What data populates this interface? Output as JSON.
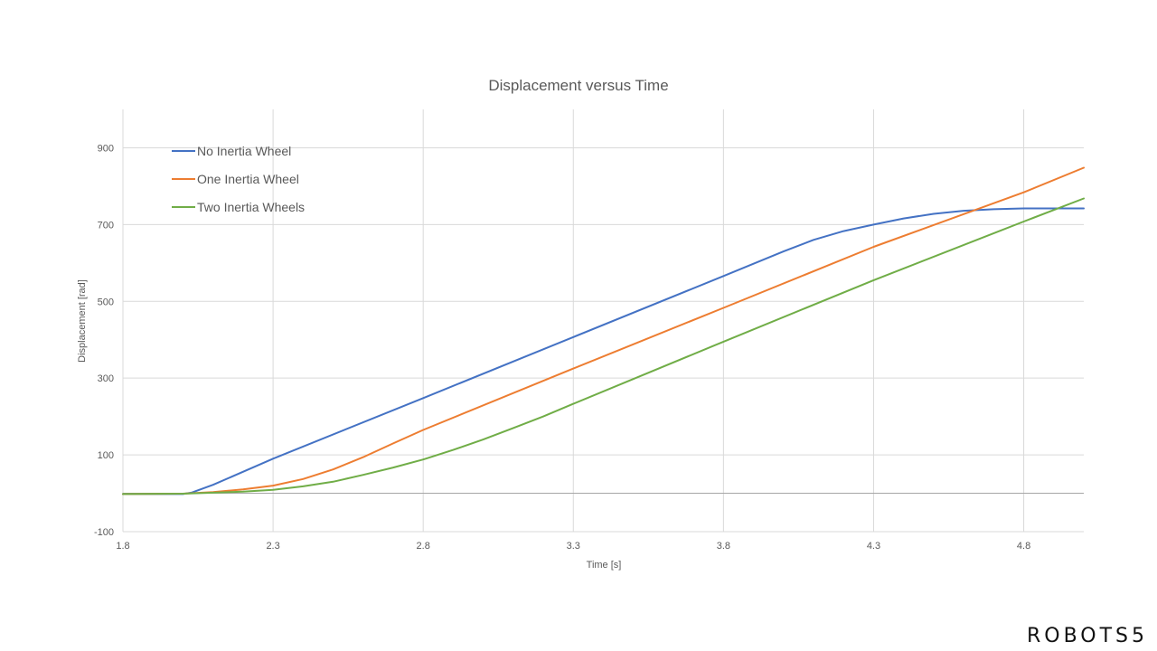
{
  "chart_data": {
    "type": "line",
    "title": "Displacement versus Time",
    "xlabel": "Time [s]",
    "ylabel": "Displacement [rad]",
    "xlim": [
      1.8,
      5.0
    ],
    "ylim": [
      -100,
      1000
    ],
    "xticks": [
      1.8,
      2.3,
      2.8,
      3.3,
      3.8,
      4.3,
      4.8
    ],
    "xtick_labels": [
      "1.8",
      "2.3",
      "2.8",
      "3.3",
      "3.8",
      "4.3",
      "4.8"
    ],
    "yticks": [
      -100,
      100,
      300,
      500,
      700,
      900
    ],
    "ytick_labels": [
      "-100",
      "100",
      "300",
      "500",
      "700",
      "900"
    ],
    "grid": true,
    "legend_position": "top-left",
    "series": [
      {
        "name": "No Inertia Wheel",
        "color": "#4472c4",
        "x": [
          1.8,
          2.0,
          2.03,
          2.1,
          2.3,
          2.8,
          3.3,
          3.8,
          4.0,
          4.1,
          4.2,
          4.3,
          4.4,
          4.5,
          4.6,
          4.7,
          4.8,
          4.9,
          5.0
        ],
        "y": [
          -2,
          -2,
          2,
          22,
          90,
          248,
          407,
          566,
          630,
          660,
          683,
          700,
          716,
          728,
          736,
          740,
          742,
          742,
          742
        ]
      },
      {
        "name": "One Inertia Wheel",
        "color": "#ed7d31",
        "x": [
          1.8,
          2.0,
          2.1,
          2.2,
          2.3,
          2.4,
          2.5,
          2.6,
          2.7,
          2.8,
          3.3,
          3.8,
          4.3,
          4.8,
          5.0
        ],
        "y": [
          -2,
          -1,
          3,
          10,
          20,
          37,
          62,
          94,
          130,
          165,
          325,
          483,
          642,
          784,
          848
        ]
      },
      {
        "name": "Two Inertia Wheels",
        "color": "#70ad47",
        "x": [
          1.8,
          2.0,
          2.2,
          2.3,
          2.4,
          2.5,
          2.6,
          2.7,
          2.8,
          2.9,
          3.0,
          3.1,
          3.2,
          3.3,
          3.8,
          4.3,
          4.8,
          5.0
        ],
        "y": [
          -2,
          -1,
          4,
          9,
          18,
          30,
          48,
          67,
          88,
          113,
          140,
          170,
          200,
          233,
          395,
          555,
          708,
          768
        ]
      }
    ]
  },
  "brand": {
    "text": "ROBOTS5"
  }
}
